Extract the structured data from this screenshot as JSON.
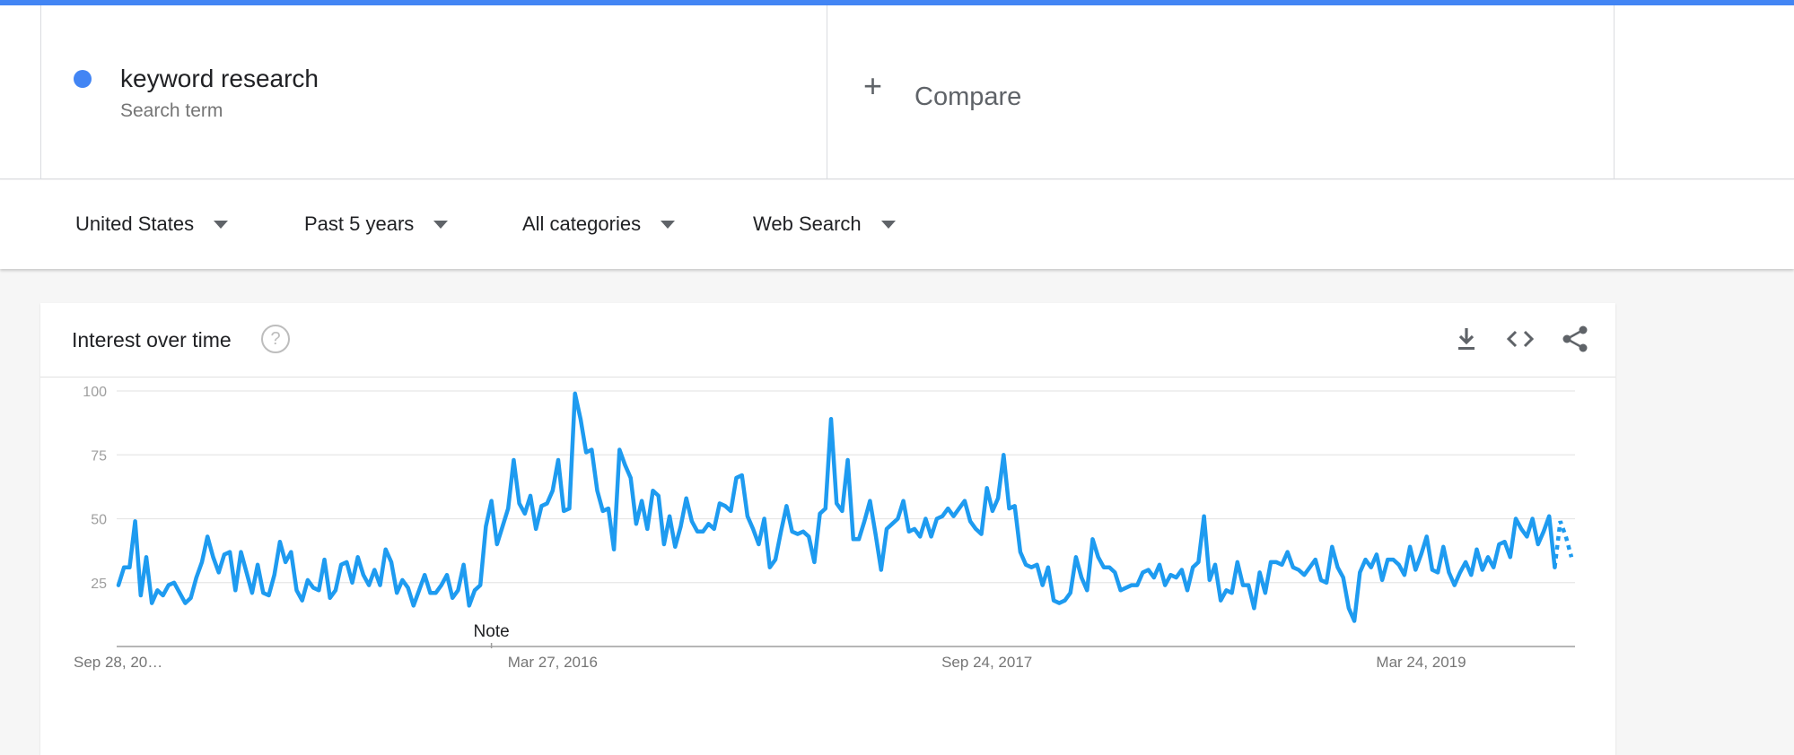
{
  "colors": {
    "accent": "#4285f4",
    "series": "#1e9bf0"
  },
  "term": {
    "name": "keyword research",
    "subtitle": "Search term"
  },
  "compare": {
    "icon": "plus-icon",
    "label": "Compare"
  },
  "filters": [
    {
      "label": "United States"
    },
    {
      "label": "Past 5 years"
    },
    {
      "label": "All categories"
    },
    {
      "label": "Web Search"
    }
  ],
  "card": {
    "title": "Interest over time",
    "help_icon": "question-circle-icon",
    "tools": [
      "download-icon",
      "embed-code-icon",
      "share-icon"
    ]
  },
  "chart_data": {
    "type": "line",
    "title": "",
    "xlabel": "",
    "ylabel": "",
    "ylim": [
      0,
      100
    ],
    "y_ticks": [
      25,
      50,
      75,
      100
    ],
    "x_tick_labels": [
      "Sep 28, 20…",
      "Mar 27, 2016",
      "Sep 24, 2017",
      "Mar 24, 2019"
    ],
    "x_tick_weeks": [
      0,
      78,
      156,
      234
    ],
    "annotation": {
      "label": "Note",
      "week": 67
    },
    "grid": true,
    "legend": "none",
    "series": [
      {
        "name": "keyword research",
        "partial_tail_points": 3,
        "values": [
          24,
          31,
          31,
          49,
          20,
          35,
          17,
          22,
          20,
          24,
          25,
          21,
          17,
          19,
          27,
          33,
          43,
          35,
          29,
          36,
          37,
          22,
          37,
          29,
          21,
          32,
          21,
          20,
          28,
          41,
          33,
          37,
          22,
          18,
          26,
          23,
          22,
          34,
          19,
          22,
          32,
          33,
          25,
          35,
          28,
          24,
          30,
          24,
          38,
          33,
          21,
          26,
          23,
          16,
          22,
          28,
          21,
          21,
          24,
          28,
          19,
          22,
          32,
          16,
          22,
          24,
          47,
          57,
          40,
          47,
          54,
          73,
          56,
          52,
          59,
          46,
          55,
          56,
          61,
          73,
          53,
          54,
          99,
          89,
          76,
          77,
          61,
          53,
          54,
          38,
          77,
          71,
          66,
          48,
          57,
          46,
          61,
          59,
          40,
          51,
          39,
          47,
          58,
          49,
          45,
          45,
          48,
          46,
          56,
          55,
          53,
          66,
          67,
          51,
          46,
          40,
          50,
          31,
          34,
          45,
          55,
          45,
          44,
          45,
          43,
          33,
          52,
          54,
          89,
          56,
          53,
          73,
          42,
          42,
          49,
          57,
          44,
          30,
          46,
          48,
          50,
          57,
          45,
          46,
          43,
          50,
          43,
          50,
          51,
          54,
          51,
          54,
          57,
          49,
          46,
          44,
          62,
          53,
          58,
          75,
          54,
          55,
          37,
          32,
          31,
          32,
          24,
          31,
          18,
          17,
          18,
          21,
          35,
          27,
          22,
          42,
          35,
          31,
          31,
          29,
          22,
          23,
          24,
          24,
          29,
          30,
          27,
          32,
          24,
          28,
          27,
          30,
          22,
          31,
          33,
          51,
          26,
          32,
          18,
          22,
          21,
          33,
          24,
          24,
          15,
          29,
          21,
          33,
          33,
          32,
          37,
          31,
          30,
          28,
          31,
          34,
          26,
          25,
          39,
          31,
          27,
          15,
          10,
          29,
          34,
          31,
          36,
          26,
          34,
          34,
          32,
          28,
          39,
          30,
          36,
          43,
          30,
          29,
          39,
          29,
          24,
          29,
          33,
          28,
          38,
          30,
          35,
          31,
          40,
          41,
          35,
          50,
          46,
          43,
          50,
          40,
          45,
          51,
          31,
          49,
          43,
          35
        ]
      }
    ]
  }
}
